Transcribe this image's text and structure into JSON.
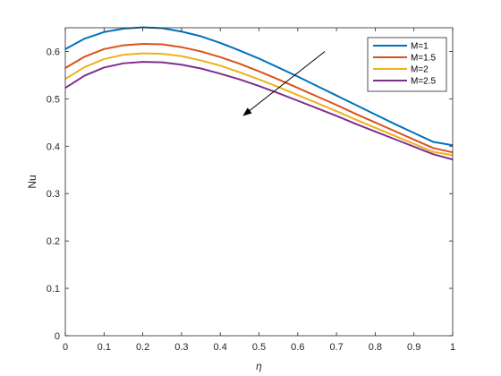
{
  "chart_data": {
    "type": "line",
    "title": "",
    "xlabel": "η",
    "ylabel": "Nu",
    "xlim": [
      0,
      1
    ],
    "ylim": [
      0,
      0.65
    ],
    "xticks": [
      "0",
      "0.1",
      "0.2",
      "0.3",
      "0.4",
      "0.5",
      "0.6",
      "0.7",
      "0.8",
      "0.9",
      "1"
    ],
    "yticks": [
      "0",
      "0.1",
      "0.2",
      "0.3",
      "0.4",
      "0.5",
      "0.6"
    ],
    "grid": false,
    "legend_position": "top-right",
    "x": [
      0,
      0.05,
      0.1,
      0.15,
      0.2,
      0.25,
      0.3,
      0.35,
      0.4,
      0.45,
      0.5,
      0.55,
      0.6,
      0.65,
      0.7,
      0.75,
      0.8,
      0.85,
      0.9,
      0.95,
      1.0
    ],
    "series": [
      {
        "name": "M=1",
        "color": "#0072BD",
        "values": [
          0.605,
          0.627,
          0.641,
          0.648,
          0.651,
          0.649,
          0.642,
          0.632,
          0.618,
          0.602,
          0.585,
          0.566,
          0.547,
          0.527,
          0.507,
          0.487,
          0.467,
          0.447,
          0.428,
          0.409,
          0.402
        ]
      },
      {
        "name": "M=1.5",
        "color": "#D95319",
        "values": [
          0.565,
          0.589,
          0.605,
          0.613,
          0.616,
          0.615,
          0.609,
          0.6,
          0.588,
          0.574,
          0.558,
          0.541,
          0.523,
          0.505,
          0.487,
          0.468,
          0.45,
          0.432,
          0.414,
          0.396,
          0.387
        ]
      },
      {
        "name": "M=2",
        "color": "#EDB120",
        "values": [
          0.542,
          0.567,
          0.584,
          0.593,
          0.596,
          0.595,
          0.59,
          0.581,
          0.57,
          0.556,
          0.541,
          0.525,
          0.508,
          0.491,
          0.474,
          0.456,
          0.439,
          0.422,
          0.405,
          0.388,
          0.381
        ]
      },
      {
        "name": "M=2.5",
        "color": "#7E2F8E",
        "values": [
          0.523,
          0.549,
          0.566,
          0.575,
          0.578,
          0.577,
          0.572,
          0.564,
          0.553,
          0.541,
          0.527,
          0.512,
          0.496,
          0.48,
          0.464,
          0.447,
          0.431,
          0.415,
          0.399,
          0.383,
          0.372
        ]
      }
    ],
    "annotations": [
      {
        "type": "arrow",
        "from": [
          0.67,
          0.6
        ],
        "to": [
          0.46,
          0.465
        ]
      }
    ]
  }
}
